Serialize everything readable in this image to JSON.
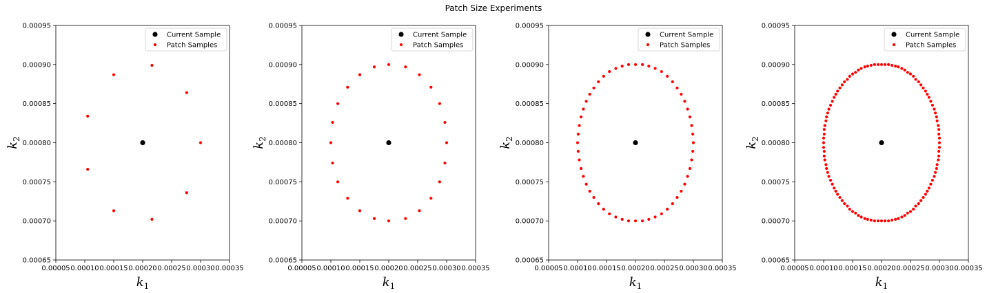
{
  "figure_title": "Patch Size Experiments",
  "colors": {
    "current_sample": "#000000",
    "patch_samples": "#ff0000",
    "legend_border": "#cccccc"
  },
  "chart_data": [
    {
      "type": "scatter",
      "title": "",
      "xlabel": "k1",
      "ylabel": "k2",
      "xlim": [
        5e-05,
        0.00035
      ],
      "ylim": [
        0.00065,
        0.00095
      ],
      "xticks": [
        "0.00005",
        "0.00010",
        "0.00015",
        "0.00020",
        "0.00025",
        "0.00030",
        "0.00035"
      ],
      "yticks": [
        "0.00065",
        "0.00070",
        "0.00075",
        "0.00080",
        "0.00085",
        "0.00090",
        "0.00095"
      ],
      "legend_position": "top-right",
      "series": [
        {
          "name": "Current Sample",
          "x": [
            0.0002
          ],
          "y": [
            0.0008
          ]
        },
        {
          "name": "Patch Samples",
          "x": [
            0.0003,
            0.000276,
            0.000216,
            0.00015,
            0.000105,
            0.000105,
            0.00015,
            0.000216,
            0.000276
          ],
          "y": [
            0.0008,
            0.000864,
            0.000899,
            0.000887,
            0.000834,
            0.000766,
            0.000713,
            0.000702,
            0.000736
          ]
        }
      ]
    },
    {
      "type": "scatter",
      "title": "",
      "xlabel": "k1",
      "ylabel": "k2",
      "xlim": [
        5e-05,
        0.00035
      ],
      "ylim": [
        0.00065,
        0.00095
      ],
      "xticks": [
        "0.00005",
        "0.00010",
        "0.00015",
        "0.00020",
        "0.00025",
        "0.00030",
        "0.00035"
      ],
      "yticks": [
        "0.00065",
        "0.00070",
        "0.00075",
        "0.00080",
        "0.00085",
        "0.00090",
        "0.00095"
      ],
      "legend_position": "top-right",
      "series": [
        {
          "name": "Current Sample",
          "x": [
            0.0002
          ],
          "y": [
            0.0008
          ]
        },
        {
          "name": "Patch Samples",
          "x": [
            0.0003,
            0.000297,
            0.000288,
            0.000273,
            0.000253,
            0.000229,
            0.0002,
            0.000175,
            0.00015,
            0.000129,
            0.000112,
            0.000103,
            0.0001,
            0.000103,
            0.000112,
            0.000129,
            0.00015,
            0.000175,
            0.0002,
            0.000229,
            0.000253,
            0.000273,
            0.000288,
            0.000297
          ],
          "y": [
            0.0008,
            0.000826,
            0.00085,
            0.000871,
            0.000887,
            0.000897,
            0.0009,
            0.000897,
            0.000887,
            0.000871,
            0.00085,
            0.000826,
            0.0008,
            0.000774,
            0.00075,
            0.000729,
            0.000713,
            0.000703,
            0.0007,
            0.000703,
            0.000713,
            0.000729,
            0.00075,
            0.000774
          ]
        }
      ]
    },
    {
      "type": "scatter",
      "title": "",
      "xlabel": "k1",
      "ylabel": "k2",
      "xlim": [
        5e-05,
        0.00035
      ],
      "ylim": [
        0.00065,
        0.00095
      ],
      "xticks": [
        "0.00005",
        "0.00010",
        "0.00015",
        "0.00020",
        "0.00025",
        "0.00030",
        "0.00035"
      ],
      "yticks": [
        "0.00065",
        "0.00070",
        "0.00075",
        "0.00080",
        "0.00085",
        "0.00090",
        "0.00095"
      ],
      "legend_position": "top-right",
      "series": [
        {
          "name": "Current Sample",
          "x": [
            0.0002
          ],
          "y": [
            0.0008
          ]
        },
        {
          "name": "Patch Samples",
          "x": [
            0.0003,
            0.000299,
            0.000297,
            0.000294,
            0.00029,
            0.000285,
            0.000279,
            0.000272,
            0.000264,
            0.000255,
            0.000245,
            0.000234,
            0.000223,
            0.000212,
            0.0002,
            0.000188,
            0.000177,
            0.000166,
            0.000155,
            0.000145,
            0.000136,
            0.000128,
            0.000121,
            0.000115,
            0.00011,
            0.000106,
            0.000103,
            0.000101,
            0.0001,
            0.000101,
            0.000103,
            0.000106,
            0.00011,
            0.000115,
            0.000121,
            0.000128,
            0.000136,
            0.000145,
            0.000155,
            0.000166,
            0.000177,
            0.000188,
            0.0002,
            0.000212,
            0.000223,
            0.000234,
            0.000245,
            0.000255,
            0.000264,
            0.000272,
            0.000279,
            0.000285,
            0.00029,
            0.000294,
            0.000297,
            0.000299
          ],
          "y": [
            0.0008,
            0.000811,
            0.000822,
            0.000833,
            0.000843,
            0.000853,
            0.000862,
            0.00087,
            0.000878,
            0.000885,
            0.000891,
            0.000895,
            0.000898,
            0.0009,
            0.0009,
            0.0009,
            0.000898,
            0.000895,
            0.000891,
            0.000885,
            0.000878,
            0.00087,
            0.000862,
            0.000853,
            0.000843,
            0.000833,
            0.000822,
            0.000811,
            0.0008,
            0.000789,
            0.000778,
            0.000767,
            0.000757,
            0.000747,
            0.000738,
            0.00073,
            0.000722,
            0.000715,
            0.000709,
            0.000705,
            0.000702,
            0.0007,
            0.0007,
            0.0007,
            0.000702,
            0.000705,
            0.000709,
            0.000715,
            0.000722,
            0.00073,
            0.000738,
            0.000747,
            0.000757,
            0.000767,
            0.000778,
            0.000789
          ]
        }
      ]
    },
    {
      "type": "scatter",
      "title": "",
      "xlabel": "k1",
      "ylabel": "k2",
      "xlim": [
        5e-05,
        0.00035
      ],
      "ylim": [
        0.00065,
        0.00095
      ],
      "xticks": [
        "0.00005",
        "0.00010",
        "0.00015",
        "0.00020",
        "0.00025",
        "0.00030",
        "0.00035"
      ],
      "yticks": [
        "0.00065",
        "0.00070",
        "0.00075",
        "0.00080",
        "0.00085",
        "0.00090",
        "0.00095"
      ],
      "legend_position": "top-right",
      "series": [
        {
          "name": "Current Sample",
          "x": [
            0.0002
          ],
          "y": [
            0.0008
          ]
        },
        {
          "name": "Patch Samples",
          "x": [
            0.0003,
            0.0003,
            0.000299,
            0.000299,
            0.000298,
            0.000296,
            0.000295,
            0.000293,
            0.000291,
            0.000288,
            0.000285,
            0.000282,
            0.000279,
            0.000276,
            0.000272,
            0.000268,
            0.000264,
            0.000259,
            0.000255,
            0.00025,
            0.000245,
            0.00024,
            0.000235,
            0.000229,
            0.000224,
            0.000218,
            0.000212,
            0.000206,
            0.0002,
            0.000194,
            0.000188,
            0.000182,
            0.000176,
            0.000171,
            0.000165,
            0.00016,
            0.000155,
            0.00015,
            0.000145,
            0.000141,
            0.000136,
            0.000132,
            0.000128,
            0.000124,
            0.000121,
            0.000118,
            0.000115,
            0.000112,
            0.000109,
            0.000107,
            0.000105,
            0.000104,
            0.000102,
            0.000101,
            0.000101,
            0.0001,
            0.0001,
            0.0001,
            0.000101,
            0.000101,
            0.000102,
            0.000104,
            0.000105,
            0.000107,
            0.000109,
            0.000112,
            0.000115,
            0.000118,
            0.000121,
            0.000124,
            0.000128,
            0.000132,
            0.000136,
            0.000141,
            0.000145,
            0.00015,
            0.000155,
            0.00016,
            0.000165,
            0.000171,
            0.000176,
            0.000182,
            0.000188,
            0.000194,
            0.0002,
            0.000206,
            0.000212,
            0.000218,
            0.000224,
            0.000229,
            0.000235,
            0.00024,
            0.000245,
            0.00025,
            0.000255,
            0.000259,
            0.000264,
            0.000268,
            0.000272,
            0.000276,
            0.000279,
            0.000282,
            0.000285,
            0.000288,
            0.000291,
            0.000293,
            0.000295,
            0.000296,
            0.000298,
            0.000299,
            0.000299,
            0.0003
          ],
          "y": [
            0.0008,
            0.000806,
            0.000811,
            0.000817,
            0.000822,
            0.000828,
            0.000833,
            0.000838,
            0.000843,
            0.000848,
            0.000853,
            0.000858,
            0.000862,
            0.000866,
            0.00087,
            0.000874,
            0.000878,
            0.000881,
            0.000885,
            0.000888,
            0.00089,
            0.000893,
            0.000895,
            0.000897,
            0.000898,
            0.000899,
            0.0009,
            0.0009,
            0.0009,
            0.0009,
            0.0009,
            0.000899,
            0.000898,
            0.000897,
            0.000895,
            0.000893,
            0.00089,
            0.000888,
            0.000885,
            0.000881,
            0.000878,
            0.000874,
            0.00087,
            0.000866,
            0.000862,
            0.000858,
            0.000853,
            0.000848,
            0.000843,
            0.000838,
            0.000833,
            0.000828,
            0.000822,
            0.000817,
            0.000811,
            0.000806,
            0.0008,
            0.000794,
            0.000789,
            0.000783,
            0.000778,
            0.000772,
            0.000767,
            0.000762,
            0.000757,
            0.000752,
            0.000747,
            0.000742,
            0.000738,
            0.000734,
            0.00073,
            0.000726,
            0.000722,
            0.000719,
            0.000715,
            0.000712,
            0.00071,
            0.000707,
            0.000705,
            0.000703,
            0.000702,
            0.000701,
            0.0007,
            0.0007,
            0.0007,
            0.0007,
            0.0007,
            0.000701,
            0.000702,
            0.000703,
            0.000705,
            0.000707,
            0.00071,
            0.000712,
            0.000715,
            0.000719,
            0.000722,
            0.000726,
            0.00073,
            0.000734,
            0.000738,
            0.000742,
            0.000747,
            0.000752,
            0.000757,
            0.000762,
            0.000767,
            0.000772,
            0.000778,
            0.000783,
            0.000789,
            0.000794
          ]
        }
      ]
    }
  ]
}
